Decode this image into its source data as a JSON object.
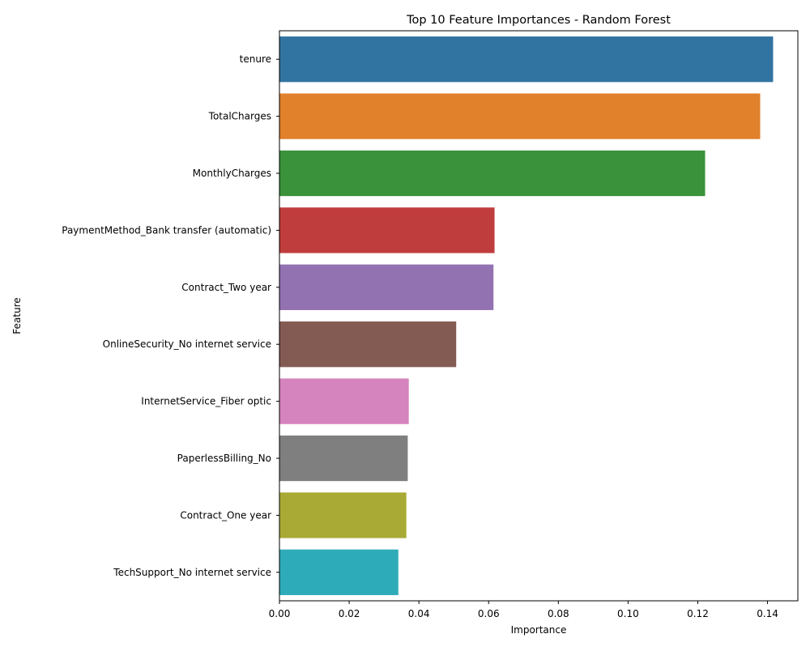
{
  "chart_data": {
    "type": "bar",
    "orientation": "horizontal",
    "title": "Top 10 Feature Importances - Random Forest",
    "xlabel": "Importance",
    "ylabel": "Feature",
    "xlim": [
      0,
      0.1487
    ],
    "x_ticks": [
      "0.00",
      "0.02",
      "0.04",
      "0.06",
      "0.08",
      "0.10",
      "0.12",
      "0.14"
    ],
    "grid": false,
    "legend": "none",
    "categories": [
      "tenure",
      "TotalCharges",
      "MonthlyCharges",
      "PaymentMethod_Bank transfer (automatic)",
      "Contract_Two year",
      "OnlineSecurity_No internet service",
      "InternetService_Fiber optic",
      "PaperlessBilling_No",
      "Contract_One year",
      "TechSupport_No internet service"
    ],
    "values": [
      0.1416,
      0.1379,
      0.1221,
      0.0617,
      0.0614,
      0.0507,
      0.0371,
      0.0368,
      0.0364,
      0.0341
    ],
    "colors": [
      "#3274a1",
      "#e1812c",
      "#3a923a",
      "#c03d3e",
      "#9372b2",
      "#845b53",
      "#d684bd",
      "#7f7f7f",
      "#a9aa35",
      "#2eabb8"
    ]
  }
}
